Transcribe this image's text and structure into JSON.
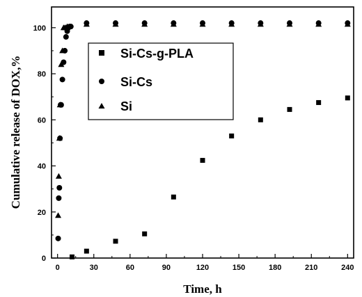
{
  "chart_data": {
    "type": "scatter",
    "title": "",
    "xlabel": "Time, h",
    "ylabel": "Cumulative release of DOX,%",
    "xlim": [
      -5,
      245
    ],
    "ylim": [
      0,
      109
    ],
    "x_ticks": [
      "0",
      "30",
      "60",
      "90",
      "120",
      "150",
      "180",
      "210",
      "240"
    ],
    "y_ticks": [
      "0",
      "20",
      "40",
      "60",
      "80",
      "100"
    ],
    "x_tick_values": [
      0,
      30,
      60,
      90,
      120,
      150,
      180,
      210,
      240
    ],
    "y_tick_values": [
      0,
      20,
      40,
      60,
      80,
      100
    ],
    "grid": false,
    "legend_position": "upper-left",
    "series": [
      {
        "name": "Si-Cs-g-PLA",
        "marker": "square",
        "x": [
          12,
          24,
          48,
          72,
          96,
          120,
          144,
          168,
          192,
          216,
          240
        ],
        "y": [
          0.5,
          3,
          7.3,
          10.5,
          26.5,
          42.4,
          53,
          60,
          64.5,
          67.5,
          69.5
        ]
      },
      {
        "name": "Si-Cs",
        "marker": "circle",
        "x": [
          0.5,
          1,
          1.5,
          2,
          2.5,
          3,
          4,
          5,
          6,
          7,
          8,
          9,
          10,
          11,
          24,
          48,
          72,
          96,
          120,
          144,
          168,
          192,
          216,
          240
        ],
        "y": [
          8.5,
          26,
          30.5,
          52,
          66.5,
          66.5,
          77.5,
          85,
          90,
          96,
          98.5,
          100,
          100.5,
          100.5,
          102,
          102,
          102,
          102,
          102,
          102,
          102,
          102,
          102,
          102
        ]
      },
      {
        "name": "Si",
        "marker": "triangle",
        "x": [
          0.5,
          1,
          1.5,
          2,
          3,
          4,
          5,
          6,
          7,
          8,
          24,
          48,
          72,
          96,
          120,
          144,
          168,
          192,
          216,
          240
        ],
        "y": [
          18.5,
          35.5,
          52,
          66.5,
          84,
          90,
          100,
          100,
          100,
          100.5,
          101.5,
          101.5,
          101.5,
          101.5,
          101.5,
          101.5,
          101.5,
          101.5,
          101.5,
          101.5
        ]
      }
    ]
  }
}
